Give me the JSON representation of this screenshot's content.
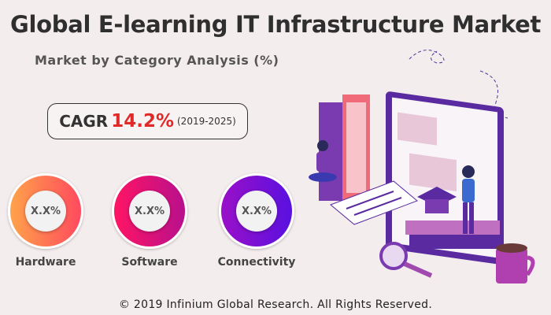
{
  "header": {
    "title": "Global E-learning IT Infrastructure Market",
    "subtitle": "Market by Category Analysis (%)"
  },
  "cagr": {
    "label": "CAGR",
    "value": "14.2%",
    "period": "(2019-2025)",
    "value_color": "#e02a2a"
  },
  "categories": [
    {
      "label": "Hardware",
      "value": "X.X%",
      "colors": [
        "#ffa24a",
        "#ff4a5e"
      ]
    },
    {
      "label": "Software",
      "value": "X.X%",
      "colors": [
        "#ff1464",
        "#b8108c"
      ]
    },
    {
      "label": "Connectivity",
      "value": "X.X%",
      "colors": [
        "#9a10c8",
        "#5a10e0"
      ]
    }
  ],
  "footer": {
    "copyright": "© 2019 Infinium Global Research. All Rights Reserved."
  }
}
